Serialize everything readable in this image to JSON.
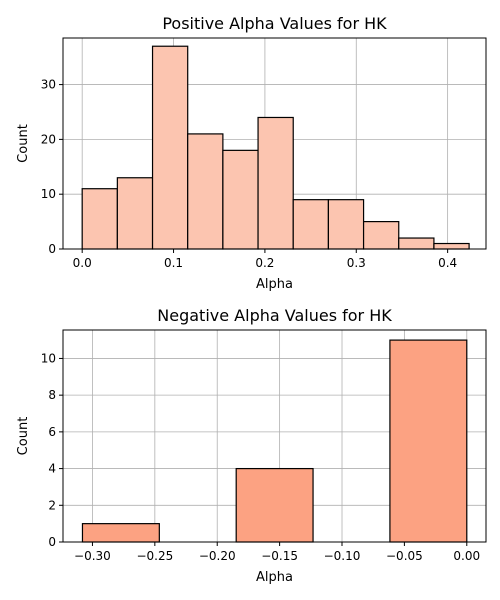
{
  "chart_data": [
    {
      "type": "bar",
      "title": "Positive Alpha Values for HK",
      "xlabel": "Alpha",
      "ylabel": "Count",
      "xlim": [
        -0.021,
        0.442
      ],
      "ylim": [
        0,
        38.5
      ],
      "xticks": [
        0.0,
        0.1,
        0.2,
        0.3,
        0.4
      ],
      "xtick_labels": [
        "0.0",
        "0.1",
        "0.2",
        "0.3",
        "0.4"
      ],
      "yticks": [
        0,
        10,
        20,
        30
      ],
      "ytick_labels": [
        "0",
        "10",
        "20",
        "30"
      ],
      "bin_edges": [
        0.0,
        0.0385,
        0.077,
        0.1155,
        0.154,
        0.1925,
        0.231,
        0.2695,
        0.308,
        0.3465,
        0.385,
        0.4235
      ],
      "values": [
        11,
        13,
        37,
        21,
        18,
        24,
        9,
        9,
        5,
        2,
        1
      ],
      "color": "#fcc5b0",
      "edgecolor": "#000000",
      "grid": true
    },
    {
      "type": "bar",
      "title": "Negative Alpha Values for HK",
      "xlabel": "Alpha",
      "ylabel": "Count",
      "xlim": [
        -0.3236,
        0.0154
      ],
      "ylim": [
        0,
        11.55
      ],
      "xticks": [
        -0.3,
        -0.25,
        -0.2,
        -0.15,
        -0.1,
        -0.05,
        0.0
      ],
      "xtick_labels": [
        "−0.30",
        "−0.25",
        "−0.20",
        "−0.15",
        "−0.10",
        "−0.05",
        "0.00"
      ],
      "yticks": [
        0,
        2,
        4,
        6,
        8,
        10
      ],
      "ytick_labels": [
        "0",
        "2",
        "4",
        "6",
        "8",
        "10"
      ],
      "bin_edges": [
        -0.308,
        -0.2464,
        -0.1848,
        -0.1232,
        -0.0616,
        0.0
      ],
      "values": [
        1,
        0,
        4,
        0,
        11
      ],
      "color": "#fca282",
      "edgecolor": "#000000",
      "grid": true
    }
  ]
}
